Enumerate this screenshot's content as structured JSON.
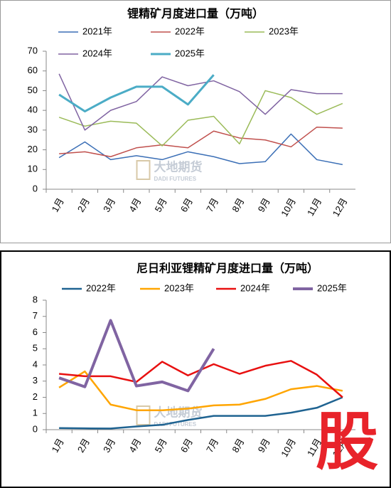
{
  "chart_data": [
    {
      "type": "line",
      "title": "锂精矿月度进口量（万吨）",
      "categories": [
        "1月",
        "2月",
        "3月",
        "4月",
        "5月",
        "6月",
        "7月",
        "8月",
        "9月",
        "10月",
        "11月",
        "12月"
      ],
      "ylim": [
        0,
        70
      ],
      "yticks": [
        0,
        10,
        20,
        30,
        40,
        50,
        60,
        70
      ],
      "watermark": "大地期货",
      "watermark_sub": "DADI FUTURES",
      "series": [
        {
          "name": "2021年",
          "color": "#3b6fb6",
          "values": [
            16,
            24,
            15,
            17,
            15,
            19,
            16.5,
            13,
            14,
            28,
            15,
            12.5
          ]
        },
        {
          "name": "2022年",
          "color": "#c0504d",
          "values": [
            18,
            19,
            16.5,
            21,
            22.5,
            21,
            29.5,
            26,
            25,
            21.5,
            31.5,
            31
          ]
        },
        {
          "name": "2023年",
          "color": "#9bbb59",
          "values": [
            36.5,
            32,
            34.5,
            33.5,
            22,
            35,
            37,
            23,
            50,
            46.5,
            38,
            43.5
          ]
        },
        {
          "name": "2024年",
          "color": "#8064a2",
          "values": [
            58.5,
            30,
            40,
            44.5,
            57,
            52.5,
            55,
            49.5,
            38,
            50.5,
            48.5,
            48.5
          ]
        },
        {
          "name": "2025年",
          "color": "#4bacc6",
          "values": [
            48,
            39.5,
            46.5,
            52,
            52,
            43,
            58,
            null,
            null,
            null,
            null,
            null
          ]
        }
      ]
    },
    {
      "type": "line",
      "title": "尼日利亚锂精矿月度进口量（万吨）",
      "categories": [
        "1月",
        "2月",
        "3月",
        "4月",
        "5月",
        "6月",
        "7月",
        "8月",
        "9月",
        "10月",
        "11月",
        "12月"
      ],
      "ylim": [
        0,
        8
      ],
      "yticks": [
        0,
        1,
        2,
        3,
        4,
        5,
        6,
        7,
        8
      ],
      "watermark": "大地期货",
      "watermark_sub": "DADI FUTURES",
      "badge": "股",
      "series": [
        {
          "name": "2022年",
          "color": "#1f6391",
          "values": [
            0.1,
            0.08,
            0.07,
            0.2,
            0.3,
            0.6,
            0.85,
            0.85,
            0.85,
            1.05,
            1.35,
            2.0
          ]
        },
        {
          "name": "2023年",
          "color": "#ffa500",
          "values": [
            2.6,
            3.6,
            1.55,
            1.2,
            1.2,
            1.3,
            1.5,
            1.55,
            1.9,
            2.5,
            2.7,
            2.4
          ]
        },
        {
          "name": "2024年",
          "color": "#e81010",
          "values": [
            3.45,
            3.3,
            3.3,
            2.95,
            4.2,
            3.35,
            4.05,
            3.45,
            3.95,
            4.25,
            3.4,
            2.0
          ]
        },
        {
          "name": "2025年",
          "color": "#8064a2",
          "values": [
            3.2,
            2.65,
            6.75,
            2.7,
            2.95,
            2.4,
            5.0,
            null,
            null,
            null,
            null,
            null
          ]
        }
      ]
    }
  ]
}
